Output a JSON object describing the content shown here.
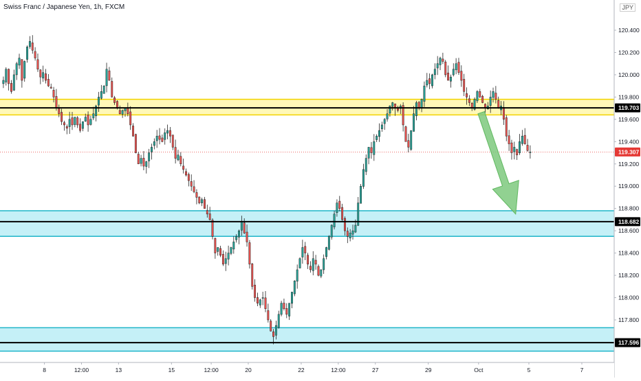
{
  "header": {
    "title": "Swiss Franc / Japanese Yen, 1h, FXCM",
    "currency_label": "JPY"
  },
  "colors": {
    "up": "#26a69a",
    "down": "#ef5350",
    "wick": "#222222",
    "support_zone": "#bfeef6",
    "support_border": "#1fb5c9",
    "resistance_zone": "#fff7b0",
    "resistance_border": "#f2d200",
    "arrow": "#7ec97e",
    "last_price": "#e53935",
    "level_badge": "#000000"
  },
  "chart_data": {
    "type": "candlestick",
    "title": "Swiss Franc / Japanese Yen, 1h, FXCM",
    "ylim": [
      117.45,
      120.35
    ],
    "y_ticks": [
      "120.400",
      "120.200",
      "120.000",
      "119.800",
      "119.600",
      "119.400",
      "119.200",
      "119.000",
      "118.800",
      "118.600",
      "118.400",
      "118.200",
      "118.000",
      "117.800"
    ],
    "x_ticks": [
      {
        "label": "8",
        "i": 16
      },
      {
        "label": "12:00",
        "i": 30
      },
      {
        "label": "13",
        "i": 44
      },
      {
        "label": "15",
        "i": 64
      },
      {
        "label": "12:00",
        "i": 79
      },
      {
        "label": "20",
        "i": 93
      },
      {
        "label": "22",
        "i": 113
      },
      {
        "label": "12:00",
        "i": 127
      },
      {
        "label": "27",
        "i": 141
      },
      {
        "label": "29",
        "i": 161
      },
      {
        "label": "Oct",
        "i": 180
      },
      {
        "label": "5",
        "i": 199
      },
      {
        "label": "7",
        "i": 219
      }
    ],
    "x_ticks_note": "",
    "levels": [
      {
        "value": 119.703,
        "label": "119.703"
      },
      {
        "value": 118.682,
        "label": "118.682"
      },
      {
        "value": 117.596,
        "label": "117.596"
      }
    ],
    "last_price": {
      "value": 119.307,
      "label": "119.307"
    },
    "zones": [
      {
        "kind": "resistance",
        "from": 119.64,
        "to": 119.78
      },
      {
        "kind": "support",
        "from": 118.55,
        "to": 118.78
      },
      {
        "kind": "support",
        "from": 117.52,
        "to": 117.73
      }
    ],
    "arrow": {
      "from_i": 181,
      "from_y": 119.66,
      "to_i": 194,
      "to_y": 118.75
    },
    "closes": [
      119.95,
      120.05,
      119.92,
      119.85,
      120.0,
      120.1,
      120.15,
      119.95,
      120.12,
      120.25,
      120.3,
      120.22,
      120.15,
      120.05,
      119.98,
      120.02,
      119.95,
      119.9,
      119.88,
      119.8,
      119.7,
      119.65,
      119.58,
      119.55,
      119.52,
      119.6,
      119.55,
      119.62,
      119.55,
      119.5,
      119.58,
      119.62,
      119.55,
      119.6,
      119.65,
      119.72,
      119.8,
      119.85,
      119.9,
      120.05,
      119.95,
      119.8,
      119.75,
      119.7,
      119.65,
      119.68,
      119.7,
      119.65,
      119.55,
      119.45,
      119.3,
      119.2,
      119.25,
      119.18,
      119.22,
      119.3,
      119.35,
      119.4,
      119.45,
      119.42,
      119.4,
      119.48,
      119.5,
      119.45,
      119.35,
      119.25,
      119.28,
      119.2,
      119.15,
      119.1,
      119.05,
      119.0,
      118.95,
      118.9,
      118.85,
      118.88,
      118.8,
      118.75,
      118.7,
      118.55,
      118.4,
      118.45,
      118.38,
      118.3,
      118.35,
      118.4,
      118.45,
      118.5,
      118.55,
      118.6,
      118.68,
      118.58,
      118.5,
      118.3,
      118.1,
      118.0,
      117.95,
      117.98,
      118.0,
      117.9,
      117.8,
      117.7,
      117.65,
      117.75,
      117.85,
      117.95,
      117.9,
      117.85,
      117.95,
      118.05,
      118.15,
      118.25,
      118.35,
      118.45,
      118.4,
      118.3,
      118.25,
      118.35,
      118.3,
      118.2,
      118.25,
      118.35,
      118.45,
      118.55,
      118.65,
      118.75,
      118.85,
      118.8,
      118.7,
      118.6,
      118.55,
      118.58,
      118.6,
      118.65,
      118.85,
      119.0,
      119.15,
      119.25,
      119.35,
      119.3,
      119.4,
      119.45,
      119.5,
      119.55,
      119.6,
      119.65,
      119.72,
      119.75,
      119.7,
      119.68,
      119.72,
      119.55,
      119.4,
      119.35,
      119.5,
      119.65,
      119.75,
      119.7,
      119.78,
      119.9,
      119.95,
      119.92,
      120.0,
      120.05,
      120.1,
      120.15,
      120.12,
      120.0,
      119.95,
      119.98,
      120.05,
      120.1,
      120.02,
      119.95,
      119.85,
      119.8,
      119.75,
      119.7,
      119.78,
      119.85,
      119.8,
      119.75,
      119.7,
      119.72,
      119.8,
      119.85,
      119.78,
      119.7,
      119.72,
      119.6,
      119.45,
      119.38,
      119.3,
      119.35,
      119.28,
      119.4,
      119.45,
      119.38,
      119.32,
      119.307
    ]
  }
}
